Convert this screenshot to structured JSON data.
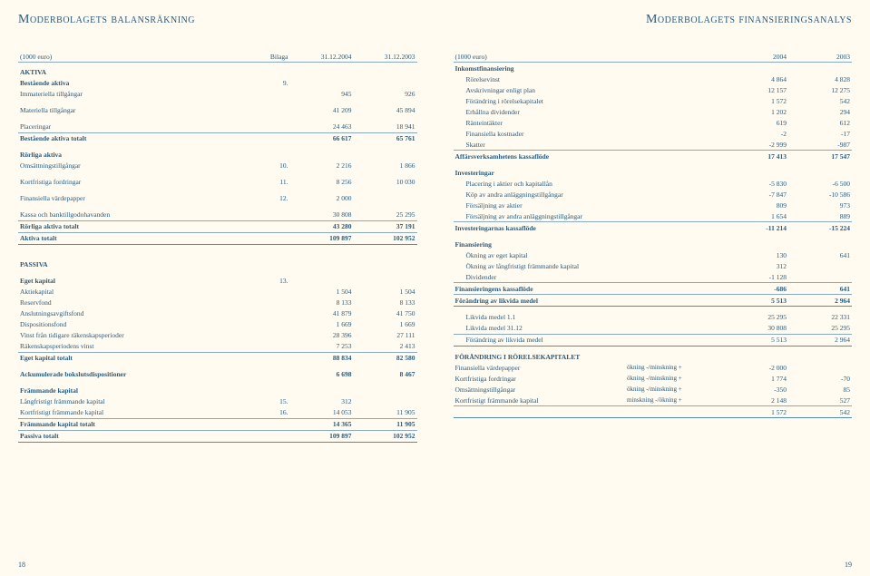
{
  "colors": {
    "text": "#2b5a7a",
    "background": "#fffbf0",
    "rule": "#8aa9c0"
  },
  "left": {
    "title": "Moderbolagets balansräkning",
    "pagenum": "18",
    "header": {
      "unit": "(1000 euro)",
      "noteCol": "Bilaga",
      "c1": "31.12.2004",
      "c2": "31.12.2003"
    },
    "rows": [
      {
        "type": "section",
        "label": "AKTIVA"
      },
      {
        "type": "bold",
        "label": "Bestående aktiva",
        "note": "9."
      },
      {
        "label": "Immateriella tillgångar",
        "v1": "945",
        "v2": "926"
      },
      {
        "type": "gap"
      },
      {
        "label": "Materiella tillgångar",
        "v1": "41 209",
        "v2": "45 894"
      },
      {
        "type": "gap"
      },
      {
        "label": "Placeringar",
        "v1": "24 463",
        "v2": "18 941"
      },
      {
        "type": "hr"
      },
      {
        "type": "bold",
        "label": "Bestående aktiva totalt",
        "v1": "66 617",
        "v2": "65 761"
      },
      {
        "type": "gap"
      },
      {
        "type": "bold",
        "label": "Rörliga aktiva"
      },
      {
        "label": "Omsättningstillgångar",
        "note": "10.",
        "v1": "2 216",
        "v2": "1 866"
      },
      {
        "type": "gap"
      },
      {
        "label": "Kortfristiga fordringar",
        "note": "11.",
        "v1": "8 256",
        "v2": "10 030"
      },
      {
        "type": "gap"
      },
      {
        "label": "Finansiella värdepapper",
        "note": "12.",
        "v1": "2 000"
      },
      {
        "type": "gap"
      },
      {
        "label": "Kassa och banktillgodohavanden",
        "v1": "30 808",
        "v2": "25 295"
      },
      {
        "type": "hr"
      },
      {
        "type": "bold",
        "label": "Rörliga aktiva totalt",
        "v1": "43 280",
        "v2": "37 191"
      },
      {
        "type": "hr"
      },
      {
        "type": "bold",
        "label": "Aktiva totalt",
        "v1": "109 897",
        "v2": "102 952"
      },
      {
        "type": "hr-bold"
      },
      {
        "type": "gap"
      },
      {
        "type": "gap"
      },
      {
        "type": "section",
        "label": "PASSIVA"
      },
      {
        "type": "gap"
      },
      {
        "type": "bold",
        "label": "Eget kapital",
        "note": "13."
      },
      {
        "label": "Aktiekapital",
        "v1": "1 504",
        "v2": "1 504"
      },
      {
        "label": "Reservfond",
        "v1": "8 133",
        "v2": "8 133"
      },
      {
        "label": "Anslutningsavgiftsfond",
        "v1": "41 879",
        "v2": "41 750"
      },
      {
        "label": "Dispositionsfond",
        "v1": "1 669",
        "v2": "1 669"
      },
      {
        "label": "Vinst från tidigare räkenskapsperioder",
        "v1": "28 396",
        "v2": "27 111"
      },
      {
        "label": "Räkenskapsperiodens vinst",
        "v1": "7 253",
        "v2": "2 413"
      },
      {
        "type": "hr"
      },
      {
        "type": "bold",
        "label": "Eget kapital totalt",
        "v1": "88 834",
        "v2": "82 580"
      },
      {
        "type": "gap"
      },
      {
        "type": "bold",
        "label": "Ackumulerade bokslutsdispositioner",
        "v1": "6 698",
        "v2": "8 467"
      },
      {
        "type": "gap"
      },
      {
        "type": "bold",
        "label": "Främmande kapital"
      },
      {
        "label": "Långfristigt främmande kapital",
        "note": "15.",
        "v1": "312"
      },
      {
        "label": "Kortfristigt främmande kapital",
        "note": "16.",
        "v1": "14 053",
        "v2": "11 905"
      },
      {
        "type": "hr"
      },
      {
        "type": "bold",
        "label": "Främmande kapital totalt",
        "v1": "14 365",
        "v2": "11 905"
      },
      {
        "type": "hr"
      },
      {
        "type": "bold",
        "label": "Passiva totalt",
        "v1": "109 897",
        "v2": "102 952"
      },
      {
        "type": "hr-bold"
      }
    ]
  },
  "right": {
    "title": "Moderbolagets finansieringsanalys",
    "pagenum": "19",
    "header": {
      "unit": "(1000 euro)",
      "noteCol": "",
      "c1": "2004",
      "c2": "2003"
    },
    "rows": [
      {
        "type": "bold",
        "label": "Inkomstfinansiering"
      },
      {
        "label": "Rörelsevinst",
        "indent": true,
        "v1": "4 864",
        "v2": "4 828"
      },
      {
        "label": "Avskrivningar enligt plan",
        "indent": true,
        "v1": "12 157",
        "v2": "12 275"
      },
      {
        "label": "Förändring i rörelsekapitalet",
        "indent": true,
        "v1": "1 572",
        "v2": "542"
      },
      {
        "label": "Erhållna dividender",
        "indent": true,
        "v1": "1 202",
        "v2": "294"
      },
      {
        "label": "Ränteintäkter",
        "indent": true,
        "v1": "619",
        "v2": "612"
      },
      {
        "label": "Finansiella kostnader",
        "indent": true,
        "v1": "-2",
        "v2": "-17"
      },
      {
        "label": "Skatter",
        "indent": true,
        "v1": "-2 999",
        "v2": "-987"
      },
      {
        "type": "hr"
      },
      {
        "type": "bold",
        "label": "Affärsverksamhetens kassaflöde",
        "v1": "17 413",
        "v2": "17 547"
      },
      {
        "type": "gap"
      },
      {
        "type": "bold",
        "label": "Investeringar"
      },
      {
        "label": "Placering i aktier och kapitallån",
        "indent": true,
        "v1": "-5 830",
        "v2": "-6 500"
      },
      {
        "label": "Köp av andra anläggningstillgångar",
        "indent": true,
        "v1": "-7 847",
        "v2": "-10 586"
      },
      {
        "label": "Försäljning av aktier",
        "indent": true,
        "v1": "809",
        "v2": "973"
      },
      {
        "label": "Försäljning av andra anläggningstillgångar",
        "indent": true,
        "v1": "1 654",
        "v2": "889"
      },
      {
        "type": "hr"
      },
      {
        "type": "bold",
        "label": "Investeringarnas kassaflöde",
        "v1": "-11 214",
        "v2": "-15 224"
      },
      {
        "type": "gap"
      },
      {
        "type": "bold",
        "label": "Finansiering"
      },
      {
        "label": "Ökning av eget kapital",
        "indent": true,
        "v1": "130",
        "v2": "641"
      },
      {
        "label": "Ökning av långfristigt främmande kapital",
        "indent": true,
        "v1": "312"
      },
      {
        "label": "Dividender",
        "indent": true,
        "v1": "-1 128"
      },
      {
        "type": "hr"
      },
      {
        "type": "bold",
        "label": "Finansieringens kassaflöde",
        "v1": "-686",
        "v2": "641"
      },
      {
        "type": "hr"
      },
      {
        "type": "bold",
        "label": "Förändring av likvida medel",
        "v1": "5 513",
        "v2": "2 964"
      },
      {
        "type": "hr-bold"
      },
      {
        "type": "gap"
      },
      {
        "label": "Likvida medel 1.1",
        "indent": true,
        "v1": "25 295",
        "v2": "22 331"
      },
      {
        "label": "Likvida medel 31.12",
        "indent": true,
        "v1": "30 808",
        "v2": "25 295"
      },
      {
        "type": "hr"
      },
      {
        "label": "Förändring av likvida medel",
        "indent": true,
        "v1": "5 513",
        "v2": "2 964"
      },
      {
        "type": "hr-bold"
      },
      {
        "type": "gap"
      },
      {
        "type": "bold",
        "label": "FÖRÄNDRING I RÖRELSEKAPITALET"
      },
      {
        "label": "Finansiella värdepapper",
        "note2": "ökning -/minskning +",
        "v1": "-2 000"
      },
      {
        "label": "Kortfristiga fordringar",
        "note2": "ökning -/minskning +",
        "v1": "1 774",
        "v2": "-70"
      },
      {
        "label": "Omsättningstillgångar",
        "note2": "ökning -/minskning +",
        "v1": "-350",
        "v2": "85"
      },
      {
        "label": "Kortfristigt främmande kapital",
        "note2": "minskning -/ökning +",
        "v1": "2 148",
        "v2": "527"
      },
      {
        "type": "hr"
      },
      {
        "label": "",
        "v1": "1 572",
        "v2": "542"
      },
      {
        "type": "hr-bold"
      }
    ]
  }
}
